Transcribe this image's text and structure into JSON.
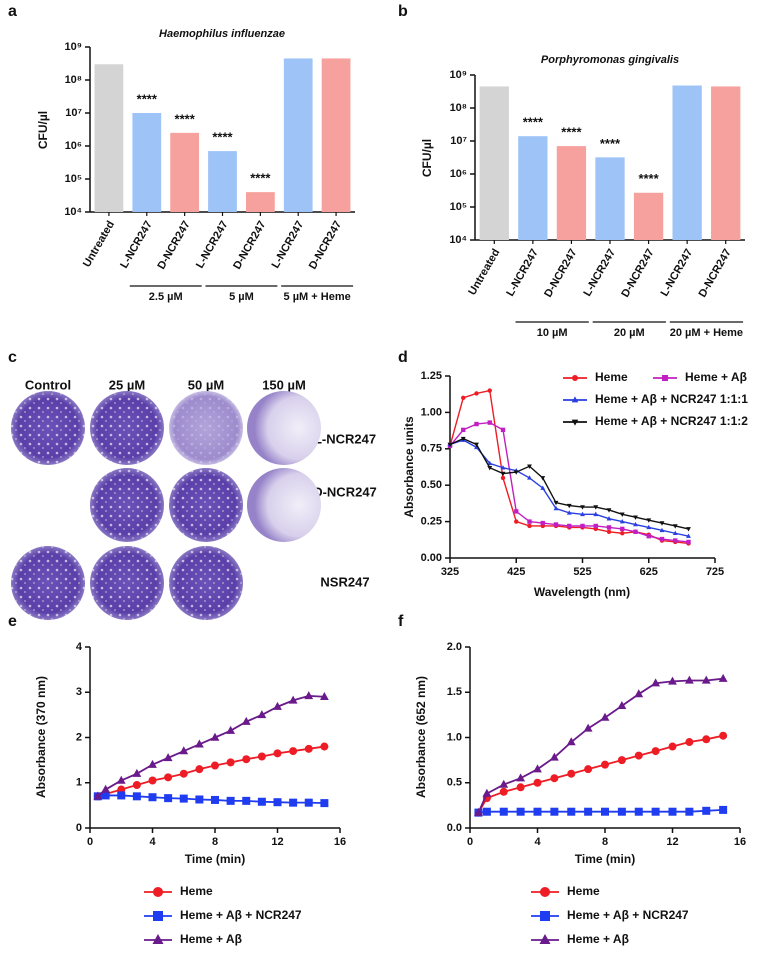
{
  "chart_data": [
    {
      "type": "bar",
      "panel_label": "a",
      "title": "Haemophilus influenzae",
      "y_label": "CFU/µl",
      "log_scale": true,
      "grid": false,
      "categories": [
        "Untreated",
        "L-NCR247",
        "D-NCR247",
        "L-NCR247",
        "D-NCR247",
        "L-NCR247",
        "D-NCR247"
      ],
      "category_groups": [
        null,
        "2.5 µM",
        "2.5 µM",
        "5 µM",
        "5 µM",
        "5 µM + Heme",
        "5 µM + Heme"
      ],
      "values": [
        300000000,
        10000000,
        2500000,
        700000,
        40000,
        450000000,
        450000000
      ],
      "annotations": [
        null,
        "****",
        "****",
        "****",
        "****",
        null,
        null
      ],
      "colors": [
        "#d4d4d4",
        "#9ec4f7",
        "#f6a19d",
        "#9ec4f7",
        "#f6a19d",
        "#9ec4f7",
        "#f6a19d"
      ],
      "ylim": [
        10000,
        1000000000
      ],
      "yticks": [
        {
          "value": 10000,
          "label": "10⁴"
        },
        {
          "value": 100000,
          "label": "10⁵"
        },
        {
          "value": 1000000,
          "label": "10⁶"
        },
        {
          "value": 10000000,
          "label": "10⁷"
        },
        {
          "value": 100000000,
          "label": "10⁸"
        },
        {
          "value": 1000000000,
          "label": "10⁹"
        }
      ]
    },
    {
      "type": "bar",
      "panel_label": "b",
      "title": "Porphyromonas gingivalis",
      "y_label": "CFU/µl",
      "log_scale": true,
      "grid": false,
      "categories": [
        "Untreated",
        "L-NCR247",
        "D-NCR247",
        "L-NCR247",
        "D-NCR247",
        "L-NCR247",
        "D-NCR247"
      ],
      "category_groups": [
        null,
        "10 µM",
        "10 µM",
        "20 µM",
        "20 µM",
        "20 µM + Heme",
        "20 µM + Heme"
      ],
      "values": [
        450000000,
        14000000,
        7000000,
        3200000,
        270000,
        480000000,
        450000000
      ],
      "annotations": [
        null,
        "****",
        "****",
        "****",
        "****",
        null,
        null
      ],
      "colors": [
        "#d4d4d4",
        "#9ec4f7",
        "#f6a19d",
        "#9ec4f7",
        "#f6a19d",
        "#9ec4f7",
        "#f6a19d"
      ],
      "ylim": [
        10000,
        1000000000
      ],
      "yticks": [
        {
          "value": 10000,
          "label": "10⁴"
        },
        {
          "value": 100000,
          "label": "10⁵"
        },
        {
          "value": 1000000,
          "label": "10⁶"
        },
        {
          "value": 10000000,
          "label": "10⁷"
        },
        {
          "value": 100000000,
          "label": "10⁸"
        },
        {
          "value": 1000000000,
          "label": "10⁹"
        }
      ]
    },
    {
      "type": "line",
      "panel_label": "d",
      "x_label": "Wavelength (nm)",
      "y_label": "Absorbance units",
      "legend": "top-right",
      "grid": false,
      "x": [
        325,
        345,
        365,
        385,
        405,
        425,
        445,
        465,
        485,
        505,
        525,
        545,
        565,
        585,
        605,
        625,
        645,
        665,
        685
      ],
      "series": [
        {
          "name": "Heme",
          "color": "#ee1c25",
          "marker": "circle",
          "values": [
            0.77,
            1.1,
            1.13,
            1.15,
            0.55,
            0.25,
            0.22,
            0.22,
            0.22,
            0.21,
            0.21,
            0.2,
            0.18,
            0.17,
            0.18,
            0.16,
            0.12,
            0.11,
            0.1
          ]
        },
        {
          "name": "Heme + Aβ",
          "color": "#c21fc2",
          "marker": "square",
          "values": [
            0.77,
            0.88,
            0.92,
            0.93,
            0.88,
            0.32,
            0.25,
            0.24,
            0.23,
            0.22,
            0.22,
            0.22,
            0.21,
            0.2,
            0.18,
            0.15,
            0.13,
            0.12,
            0.11
          ]
        },
        {
          "name": "Heme + Aβ + NCR247 1:1:1",
          "color": "#2a3fe0",
          "marker": "triangle",
          "values": [
            0.78,
            0.81,
            0.76,
            0.65,
            0.62,
            0.6,
            0.55,
            0.48,
            0.34,
            0.31,
            0.3,
            0.3,
            0.27,
            0.25,
            0.23,
            0.21,
            0.19,
            0.17,
            0.15
          ]
        },
        {
          "name": "Heme + Aβ + NCR247 1:1:2",
          "color": "#111111",
          "marker": "triangle-down",
          "values": [
            0.78,
            0.82,
            0.78,
            0.62,
            0.58,
            0.59,
            0.63,
            0.55,
            0.38,
            0.36,
            0.35,
            0.35,
            0.33,
            0.3,
            0.28,
            0.26,
            0.24,
            0.22,
            0.2
          ]
        }
      ],
      "xlim": [
        325,
        725
      ],
      "xticks": [
        325,
        425,
        525,
        625,
        725
      ],
      "ylim": [
        0,
        1.25
      ],
      "yticks": [
        {
          "value": 0,
          "label": "0.00"
        },
        {
          "value": 0.25,
          "label": "0.25"
        },
        {
          "value": 0.5,
          "label": "0.50"
        },
        {
          "value": 0.75,
          "label": "0.75"
        },
        {
          "value": 1,
          "label": "1.00"
        },
        {
          "value": 1.25,
          "label": "1.25"
        }
      ]
    },
    {
      "type": "line",
      "panel_label": "e",
      "x_label": "Time (min)",
      "y_label": "Absorbance (370 nm)",
      "legend": "bottom",
      "grid": false,
      "x": [
        0.5,
        1,
        2,
        3,
        4,
        5,
        6,
        7,
        8,
        9,
        10,
        11,
        12,
        13,
        14,
        15
      ],
      "series": [
        {
          "name": "Heme",
          "color": "#ee1c25",
          "marker": "circle",
          "values": [
            0.7,
            0.75,
            0.85,
            0.95,
            1.05,
            1.12,
            1.2,
            1.3,
            1.38,
            1.45,
            1.52,
            1.58,
            1.65,
            1.7,
            1.75,
            1.8
          ]
        },
        {
          "name": "Heme + Aβ + NCR247",
          "color": "#1f3cf0",
          "marker": "square",
          "values": [
            0.7,
            0.72,
            0.72,
            0.7,
            0.68,
            0.66,
            0.65,
            0.63,
            0.62,
            0.6,
            0.6,
            0.58,
            0.57,
            0.56,
            0.56,
            0.55
          ]
        },
        {
          "name": "Heme + Aβ",
          "color": "#6a1a8a",
          "marker": "triangle",
          "values": [
            0.7,
            0.85,
            1.05,
            1.2,
            1.4,
            1.55,
            1.7,
            1.85,
            2.0,
            2.15,
            2.35,
            2.5,
            2.68,
            2.82,
            2.92,
            2.9
          ]
        }
      ],
      "xlim": [
        0,
        16
      ],
      "xticks": [
        0,
        4,
        8,
        12,
        16
      ],
      "ylim": [
        0,
        4
      ],
      "yticks": [
        0,
        1,
        2,
        3,
        4
      ]
    },
    {
      "type": "line",
      "panel_label": "f",
      "x_label": "Time (min)",
      "y_label": "Absorbance (652 nm)",
      "legend": "bottom",
      "grid": false,
      "x": [
        0.5,
        1,
        2,
        3,
        4,
        5,
        6,
        7,
        8,
        9,
        10,
        11,
        12,
        13,
        14,
        15
      ],
      "series": [
        {
          "name": "Heme",
          "color": "#ee1c25",
          "marker": "circle",
          "values": [
            0.17,
            0.33,
            0.4,
            0.45,
            0.5,
            0.55,
            0.6,
            0.65,
            0.7,
            0.75,
            0.8,
            0.85,
            0.9,
            0.95,
            0.98,
            1.02
          ]
        },
        {
          "name": "Heme + Aβ + NCR247",
          "color": "#1f3cf0",
          "marker": "square",
          "values": [
            0.17,
            0.18,
            0.18,
            0.18,
            0.18,
            0.18,
            0.18,
            0.18,
            0.18,
            0.18,
            0.18,
            0.18,
            0.18,
            0.18,
            0.19,
            0.2
          ]
        },
        {
          "name": "Heme + Aβ",
          "color": "#6a1a8a",
          "marker": "triangle",
          "values": [
            0.17,
            0.38,
            0.48,
            0.55,
            0.65,
            0.78,
            0.95,
            1.1,
            1.22,
            1.35,
            1.48,
            1.6,
            1.62,
            1.63,
            1.63,
            1.65
          ]
        }
      ],
      "xlim": [
        0,
        16
      ],
      "xticks": [
        0,
        4,
        8,
        12,
        16
      ],
      "ylim": [
        0,
        2
      ],
      "yticks": [
        {
          "value": 0,
          "label": "0.0"
        },
        0.5,
        {
          "value": 1,
          "label": "1.0"
        },
        1.5,
        {
          "value": 2,
          "label": "2.0"
        }
      ]
    }
  ],
  "plates": {
    "panel_label": "c",
    "columns": [
      "Control",
      "25 µM",
      "50 µM",
      "150 µM"
    ],
    "rows": [
      "L-NCR247",
      "D-NCR247",
      "NSR247"
    ]
  }
}
